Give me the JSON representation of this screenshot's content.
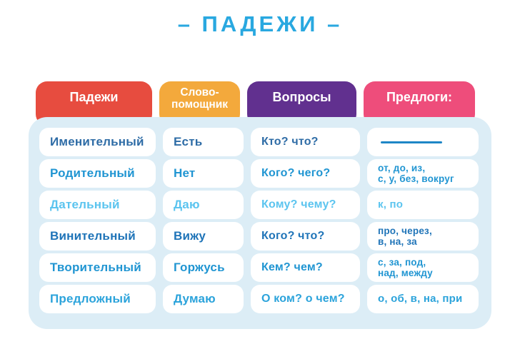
{
  "title": "– ПАДЕЖИ –",
  "theme": {
    "title_color": "#29A8E0",
    "board_bg": "#DCEDF6",
    "cell_bg": "#FFFFFF",
    "tab_text_color": "#FFFFFF",
    "dash_color": "#1E86C6"
  },
  "columns": [
    {
      "label": "Падежи",
      "color": "#E74C3F"
    },
    {
      "label": "Слово-\nпомощник",
      "color": "#F3A93C"
    },
    {
      "label": "Вопросы",
      "color": "#61308F"
    },
    {
      "label": "Предлоги:",
      "color": "#EE4D7B"
    }
  ],
  "rows": [
    {
      "case": "Именительный",
      "helper": "Есть",
      "questions": "Кто? что?",
      "prepositions": "",
      "prep_dash": true,
      "color": "#2E6CA6"
    },
    {
      "case": "Родительный",
      "helper": "Нет",
      "questions": "Кого? чего?",
      "prepositions": "от, до, из,\nс, у, без, вокруг",
      "color": "#2095D2"
    },
    {
      "case": "Дательный",
      "helper": "Даю",
      "questions": "Кому? чему?",
      "prepositions": "к, по",
      "color": "#5BC4EF"
    },
    {
      "case": "Винительный",
      "helper": "Вижу",
      "questions": "Кого? что?",
      "prepositions": "про, через,\nв, на, за",
      "color": "#1F74B8"
    },
    {
      "case": "Творительный",
      "helper": "Горжусь",
      "questions": "Кем? чем?",
      "prepositions": "с, за, под,\nнад, между",
      "color": "#2095D2"
    },
    {
      "case": "Предложный",
      "helper": "Думаю",
      "questions": "О ком? о чем?",
      "prepositions": "о, об, в, на, при",
      "color": "#2BA3DB"
    }
  ]
}
